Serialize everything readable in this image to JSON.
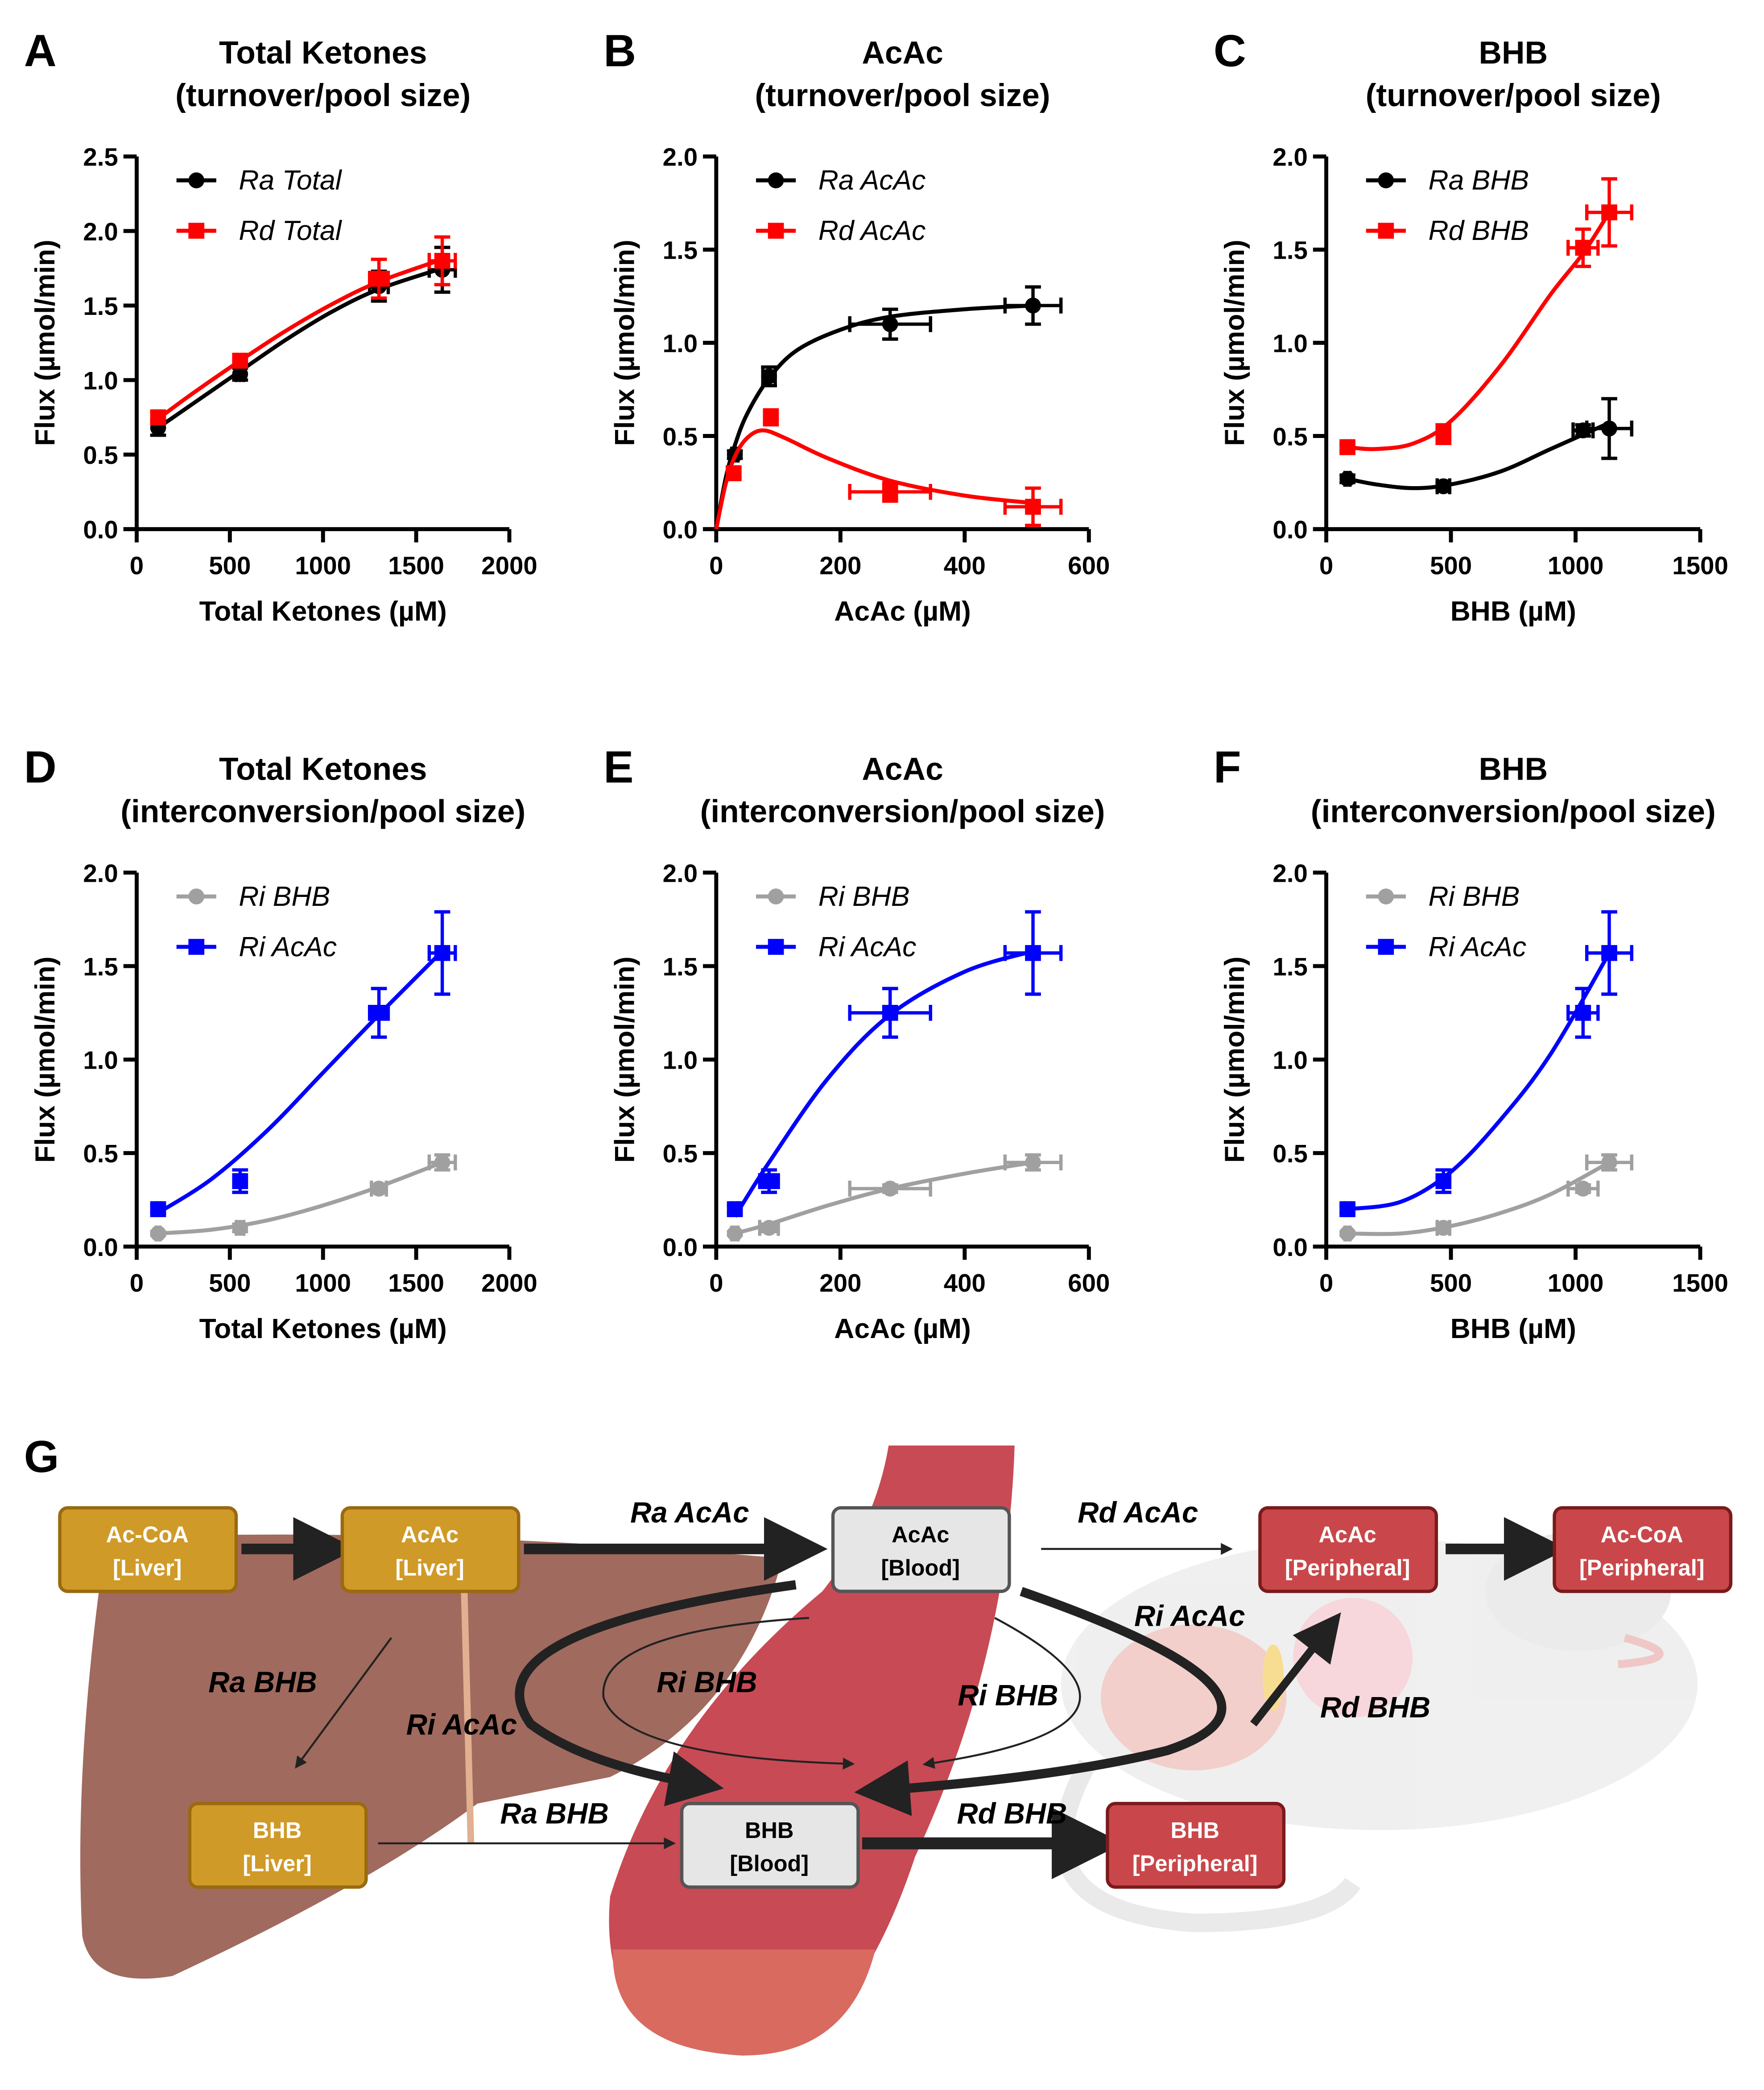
{
  "panel_g": {
    "letter": "G",
    "boxes": [
      {
        "id": "accoa-liver",
        "l1": "Ac-CoA",
        "l2": "[Liver]",
        "kind": "liver"
      },
      {
        "id": "acac-liver",
        "l1": "AcAc",
        "l2": "[Liver]",
        "kind": "liver"
      },
      {
        "id": "acac-blood",
        "l1": "AcAc",
        "l2": "[Blood]",
        "kind": "blood"
      },
      {
        "id": "acac-peripheral",
        "l1": "AcAc",
        "l2": "[Peripheral]",
        "kind": "peripheral"
      },
      {
        "id": "accoa-peripheral",
        "l1": "Ac-CoA",
        "l2": "[Peripheral]",
        "kind": "peripheral"
      },
      {
        "id": "bhb-liver",
        "l1": "BHB",
        "l2": "[Liver]",
        "kind": "liver"
      },
      {
        "id": "bhb-blood",
        "l1": "BHB",
        "l2": "[Blood]",
        "kind": "blood"
      },
      {
        "id": "bhb-peripheral",
        "l1": "BHB",
        "l2": "[Peripheral]",
        "kind": "peripheral"
      }
    ],
    "flows": [
      "Ra AcAc",
      "Rd AcAc",
      "Ri AcAc",
      "Ra BHB",
      "Ri BHB",
      "Ri AcAc",
      "Ri BHB",
      "Rd BHB",
      "Ra BHB",
      "Rd BHB"
    ]
  },
  "colors": {
    "liver_box": "#D09A28",
    "blood_box": "#E6E6E6",
    "peripheral_box": "#C9474A",
    "ra": "#000000",
    "rd": "#FF0000",
    "ri_bhb": "#A0A0A0",
    "ri_acac": "#0000FF"
  },
  "chart_data": [
    {
      "letter": "A",
      "type": "scatter",
      "title": "Total Ketones",
      "subtitle": "(turnover/pool size)",
      "xlabel": "Total Ketones (µM)",
      "ylabel": "Flux (µmol/min)",
      "xlim": [
        0,
        2000
      ],
      "ylim": [
        0,
        2.5
      ],
      "xticks": [
        0,
        500,
        1000,
        1500,
        2000
      ],
      "yticks": [
        "0.0",
        "0.5",
        "1.0",
        "1.5",
        "2.0",
        "2.5"
      ],
      "legend": "top-left",
      "series": [
        {
          "name": "Ra Total",
          "color": "#000000",
          "marker": "circle",
          "x": [
            115,
            555,
            1300,
            1640
          ],
          "y": [
            0.68,
            1.04,
            1.63,
            1.74
          ],
          "xerr": [
            10,
            20,
            50,
            70
          ],
          "yerr": [
            0.05,
            0.04,
            0.1,
            0.15
          ],
          "fit": [
            [
              115,
              0.68
            ],
            [
              300,
              0.84
            ],
            [
              555,
              1.06
            ],
            [
              800,
              1.27
            ],
            [
              1050,
              1.46
            ],
            [
              1300,
              1.61
            ],
            [
              1640,
              1.75
            ]
          ]
        },
        {
          "name": "Rd Total",
          "color": "#FF0000",
          "marker": "square",
          "x": [
            115,
            555,
            1300,
            1640
          ],
          "y": [
            0.75,
            1.13,
            1.68,
            1.8
          ],
          "xerr": [
            10,
            20,
            50,
            70
          ],
          "yerr": [
            0.04,
            0.04,
            0.13,
            0.16
          ],
          "fit": [
            [
              115,
              0.74
            ],
            [
              300,
              0.91
            ],
            [
              555,
              1.13
            ],
            [
              800,
              1.33
            ],
            [
              1050,
              1.51
            ],
            [
              1300,
              1.66
            ],
            [
              1640,
              1.81
            ]
          ]
        }
      ]
    },
    {
      "letter": "B",
      "type": "scatter",
      "title": "AcAc",
      "subtitle": "(turnover/pool size)",
      "xlabel": "AcAc (µM)",
      "ylabel": "Flux (µmol/min)",
      "xlim": [
        0,
        600
      ],
      "ylim": [
        0,
        2.0
      ],
      "xticks": [
        0,
        200,
        400,
        600
      ],
      "yticks": [
        "0.0",
        "0.5",
        "1.0",
        "1.5",
        "2.0"
      ],
      "legend": "top-left",
      "series": [
        {
          "name": "Ra AcAc",
          "color": "#000000",
          "marker": "circle",
          "x": [
            30,
            85,
            280,
            510
          ],
          "y": [
            0.4,
            0.82,
            1.1,
            1.2
          ],
          "xerr": [
            5,
            10,
            65,
            45
          ],
          "yerr": [
            0.02,
            0.05,
            0.08,
            0.1
          ],
          "fit": [
            [
              0,
              0
            ],
            [
              15,
              0.27
            ],
            [
              30,
              0.45
            ],
            [
              50,
              0.62
            ],
            [
              85,
              0.81
            ],
            [
              130,
              0.96
            ],
            [
              200,
              1.07
            ],
            [
              280,
              1.14
            ],
            [
              400,
              1.18
            ],
            [
              510,
              1.2
            ]
          ]
        },
        {
          "name": "Rd AcAc",
          "color": "#FF0000",
          "marker": "square",
          "x": [
            28,
            88,
            280,
            510
          ],
          "y": [
            0.3,
            0.6,
            0.2,
            0.12
          ],
          "xerr": [
            5,
            10,
            65,
            45
          ],
          "yerr": [
            0.03,
            0.04,
            0.05,
            0.1
          ],
          "fit": [
            [
              0,
              0
            ],
            [
              15,
              0.24
            ],
            [
              30,
              0.39
            ],
            [
              50,
              0.49
            ],
            [
              75,
              0.53
            ],
            [
              110,
              0.49
            ],
            [
              180,
              0.38
            ],
            [
              280,
              0.26
            ],
            [
              400,
              0.18
            ],
            [
              510,
              0.14
            ]
          ]
        }
      ]
    },
    {
      "letter": "C",
      "type": "scatter",
      "title": "BHB",
      "subtitle": "(turnover/pool size)",
      "xlabel": "BHB (µM)",
      "ylabel": "Flux (µmol/min)",
      "xlim": [
        0,
        1500
      ],
      "ylim": [
        0,
        2.0
      ],
      "xticks": [
        0,
        500,
        1000,
        1500
      ],
      "yticks": [
        "0.0",
        "0.5",
        "1.0",
        "1.5",
        "2.0"
      ],
      "legend": "top-left",
      "series": [
        {
          "name": "Ra BHB",
          "color": "#000000",
          "marker": "circle",
          "x": [
            85,
            470,
            1030,
            1135
          ],
          "y": [
            0.27,
            0.23,
            0.53,
            0.54
          ],
          "xerr": [
            10,
            25,
            40,
            90
          ],
          "yerr": [
            0.02,
            0.02,
            0.03,
            0.16
          ],
          "fit": [
            [
              85,
              0.27
            ],
            [
              200,
              0.24
            ],
            [
              350,
              0.22
            ],
            [
              500,
              0.24
            ],
            [
              700,
              0.31
            ],
            [
              900,
              0.43
            ],
            [
              1135,
              0.57
            ]
          ]
        },
        {
          "name": "Rd BHB",
          "color": "#FF0000",
          "marker": "square",
          "x": [
            85,
            470,
            1030,
            1135
          ],
          "y": [
            0.44,
            0.51,
            1.51,
            1.7
          ],
          "xerr": [
            10,
            25,
            60,
            90
          ],
          "yerr": [
            0.02,
            0.05,
            0.1,
            0.18
          ],
          "fit": [
            [
              85,
              0.44
            ],
            [
              200,
              0.43
            ],
            [
              350,
              0.46
            ],
            [
              500,
              0.58
            ],
            [
              700,
              0.88
            ],
            [
              900,
              1.26
            ],
            [
              1030,
              1.48
            ],
            [
              1135,
              1.7
            ]
          ]
        }
      ]
    },
    {
      "letter": "D",
      "type": "scatter",
      "title": "Total Ketones",
      "subtitle": "(interconversion/pool size)",
      "xlabel": "Total Ketones (µM)",
      "ylabel": "Flux (µmol/min)",
      "xlim": [
        0,
        2000
      ],
      "ylim": [
        0,
        2.0
      ],
      "xticks": [
        0,
        500,
        1000,
        1500,
        2000
      ],
      "yticks": [
        "0.0",
        "0.5",
        "1.0",
        "1.5",
        "2.0"
      ],
      "legend": "top-left",
      "series": [
        {
          "name": "Ri BHB",
          "color": "#A0A0A0",
          "marker": "circle",
          "x": [
            115,
            555,
            1300,
            1640
          ],
          "y": [
            0.07,
            0.1,
            0.31,
            0.45
          ],
          "xerr": [
            10,
            20,
            40,
            70
          ],
          "yerr": [
            0.01,
            0.02,
            0.02,
            0.04
          ],
          "fit": [
            [
              115,
              0.07
            ],
            [
              400,
              0.09
            ],
            [
              700,
              0.14
            ],
            [
              1000,
              0.22
            ],
            [
              1300,
              0.32
            ],
            [
              1640,
              0.45
            ]
          ]
        },
        {
          "name": "Ri AcAc",
          "color": "#0000FF",
          "marker": "square",
          "x": [
            115,
            555,
            1300,
            1640
          ],
          "y": [
            0.2,
            0.35,
            1.25,
            1.57
          ],
          "xerr": [
            10,
            20,
            50,
            70
          ],
          "yerr": [
            0.02,
            0.06,
            0.13,
            0.22
          ],
          "fit": [
            [
              115,
              0.18
            ],
            [
              400,
              0.36
            ],
            [
              700,
              0.62
            ],
            [
              1000,
              0.93
            ],
            [
              1300,
              1.24
            ],
            [
              1640,
              1.58
            ]
          ]
        }
      ]
    },
    {
      "letter": "E",
      "type": "scatter",
      "title": "AcAc",
      "subtitle": "(interconversion/pool size)",
      "xlabel": "AcAc (µM)",
      "ylabel": "Flux (µmol/min)",
      "xlim": [
        0,
        600
      ],
      "ylim": [
        0,
        2.0
      ],
      "xticks": [
        0,
        200,
        400,
        600
      ],
      "yticks": [
        "0.0",
        "0.5",
        "1.0",
        "1.5",
        "2.0"
      ],
      "legend": "top-left",
      "series": [
        {
          "name": "Ri BHB",
          "color": "#A0A0A0",
          "marker": "circle",
          "x": [
            30,
            85,
            280,
            510
          ],
          "y": [
            0.07,
            0.1,
            0.31,
            0.45
          ],
          "xerr": [
            5,
            15,
            65,
            45
          ],
          "yerr": [
            0.01,
            0.02,
            0.02,
            0.04
          ],
          "fit": [
            [
              30,
              0.07
            ],
            [
              85,
              0.12
            ],
            [
              180,
              0.22
            ],
            [
              280,
              0.31
            ],
            [
              400,
              0.39
            ],
            [
              510,
              0.45
            ]
          ]
        },
        {
          "name": "Ri AcAc",
          "color": "#0000FF",
          "marker": "square",
          "x": [
            30,
            85,
            280,
            510
          ],
          "y": [
            0.2,
            0.35,
            1.25,
            1.57
          ],
          "xerr": [
            5,
            15,
            65,
            45
          ],
          "yerr": [
            0.02,
            0.06,
            0.13,
            0.22
          ],
          "fit": [
            [
              30,
              0.16
            ],
            [
              85,
              0.45
            ],
            [
              180,
              0.9
            ],
            [
              280,
              1.24
            ],
            [
              400,
              1.47
            ],
            [
              510,
              1.58
            ]
          ]
        }
      ]
    },
    {
      "letter": "F",
      "type": "scatter",
      "title": "BHB",
      "subtitle": "(interconversion/pool size)",
      "xlabel": "BHB (µM)",
      "ylabel": "Flux (µmol/min)",
      "xlim": [
        0,
        1500
      ],
      "ylim": [
        0,
        2.0
      ],
      "xticks": [
        0,
        500,
        1000,
        1500
      ],
      "yticks": [
        "0.0",
        "0.5",
        "1.0",
        "1.5",
        "2.0"
      ],
      "legend": "top-left",
      "series": [
        {
          "name": "Ri BHB",
          "color": "#A0A0A0",
          "marker": "circle",
          "x": [
            85,
            470,
            1030,
            1135
          ],
          "y": [
            0.07,
            0.1,
            0.31,
            0.45
          ],
          "xerr": [
            10,
            25,
            60,
            90
          ],
          "yerr": [
            0.01,
            0.02,
            0.02,
            0.04
          ],
          "fit": [
            [
              85,
              0.07
            ],
            [
              300,
              0.07
            ],
            [
              500,
              0.11
            ],
            [
              700,
              0.18
            ],
            [
              900,
              0.28
            ],
            [
              1135,
              0.45
            ]
          ]
        },
        {
          "name": "Ri AcAc",
          "color": "#0000FF",
          "marker": "square",
          "x": [
            85,
            470,
            1030,
            1135
          ],
          "y": [
            0.2,
            0.35,
            1.25,
            1.57
          ],
          "xerr": [
            10,
            25,
            60,
            90
          ],
          "yerr": [
            0.02,
            0.06,
            0.13,
            0.22
          ],
          "fit": [
            [
              85,
              0.2
            ],
            [
              300,
              0.24
            ],
            [
              500,
              0.4
            ],
            [
              700,
              0.68
            ],
            [
              900,
              1.03
            ],
            [
              1135,
              1.57
            ]
          ]
        }
      ]
    }
  ]
}
